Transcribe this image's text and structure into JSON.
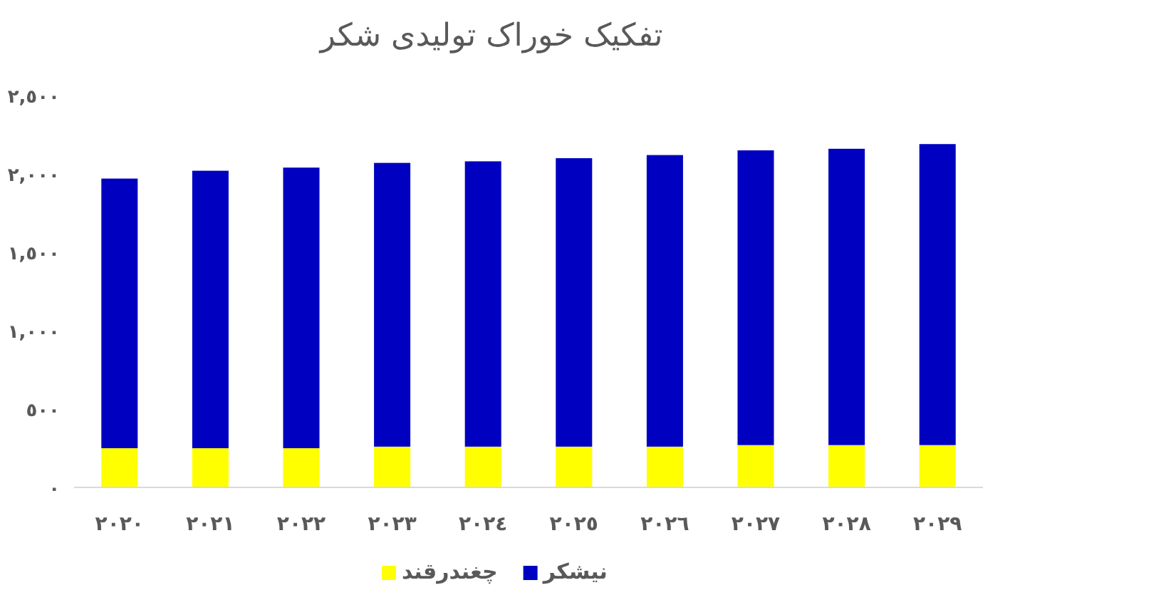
{
  "chart_data": {
    "type": "bar",
    "title": "تفکیک خوراک تولیدی شکر",
    "stacked": true,
    "categories": [
      "٢٠٢٠",
      "٢٠٢١",
      "٢٠٢٢",
      "٢٠٢٣",
      "٢٠٢٤",
      "٢٠٢٥",
      "٢٠٢٦",
      "٢٠٢٧",
      "٢٠٢٨",
      "٢٠٢٩"
    ],
    "series": [
      {
        "name": "چغندرقند",
        "color": "#ffff00",
        "values": [
          250,
          250,
          250,
          260,
          260,
          260,
          260,
          270,
          270,
          270
        ]
      },
      {
        "name": "نیشکر",
        "color": "#0000c0",
        "values": [
          1720,
          1770,
          1790,
          1810,
          1820,
          1840,
          1860,
          1880,
          1890,
          1920
        ]
      }
    ],
    "ylim": [
      0,
      2500
    ],
    "yticks": [
      {
        "value": 0,
        "label": "٠"
      },
      {
        "value": 500,
        "label": "٥٠٠"
      },
      {
        "value": 1000,
        "label": "١,٠٠٠"
      },
      {
        "value": 1500,
        "label": "١,٥٠٠"
      },
      {
        "value": 2000,
        "label": "٢,٠٠٠"
      },
      {
        "value": 2500,
        "label": "٢,٥٠٠"
      }
    ],
    "grid": false,
    "legend": "bottom"
  }
}
